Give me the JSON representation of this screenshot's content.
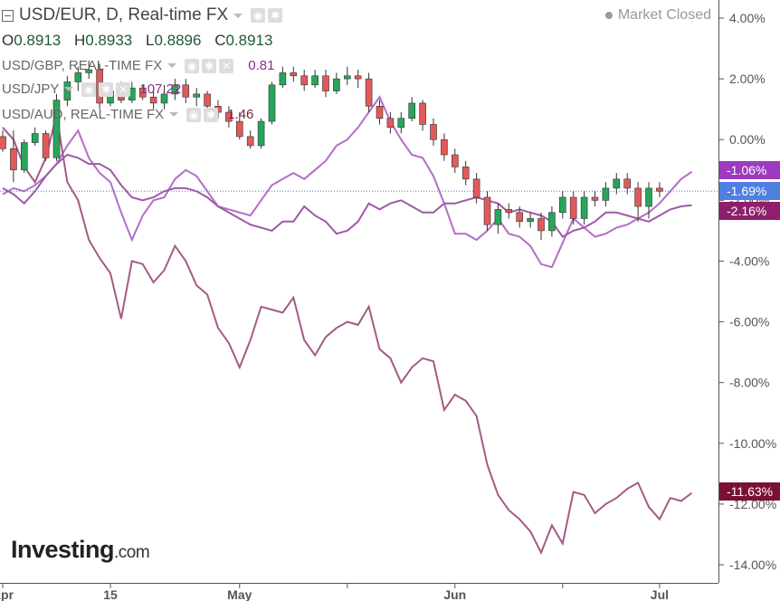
{
  "header": {
    "title": "USD/EUR, D, Real-time FX",
    "status": "Market Closed",
    "ohlc": [
      {
        "key": "O",
        "value": "0.8913"
      },
      {
        "key": "H",
        "value": "0.8933"
      },
      {
        "key": "L",
        "value": "0.8896"
      },
      {
        "key": "C",
        "value": "0.8913"
      }
    ]
  },
  "comparisons": [
    {
      "label": "USD/GBP, REAL-TIME FX",
      "value": "0.81",
      "color": "#8e2c8e"
    },
    {
      "label": "USD/JPY",
      "value": "107.22",
      "color": "#8e2c8e"
    },
    {
      "label": "USD/AUD, REAL-TIME FX",
      "value": "1.46",
      "color": "#7a1f3d"
    }
  ],
  "logo": {
    "main": "Investing",
    "suffix": ".com"
  },
  "colors": {
    "up": "#26a65b",
    "down": "#e05a5a",
    "gbp_line": "#b36ec6",
    "jpy_line": "#9c5ba6",
    "aud_line": "#a45a86",
    "price_line": "#4f7fe0"
  },
  "chart_data": {
    "type": "line",
    "y_axis_unit": "percent change",
    "ylim": [
      -14.8,
      4.6
    ],
    "y_ticks": [
      "4.00%",
      "2.00%",
      "0.00%",
      "-2.00%",
      "-4.00%",
      "-6.00%",
      "-8.00%",
      "-10.00%",
      "-12.00%",
      "-14.00%"
    ],
    "y_tick_values": [
      4,
      2,
      0,
      -2,
      -4,
      -6,
      -8,
      -10,
      -12,
      -14
    ],
    "x_ticks": [
      "Apr",
      "15",
      "May",
      "Jun",
      "Jul"
    ],
    "x_tick_index": [
      0,
      10,
      22,
      42,
      61
    ],
    "x_minor_index": [
      32,
      52
    ],
    "last_values": [
      {
        "label": "-1.06%",
        "value": -1.06,
        "color": "#9d3bbf"
      },
      {
        "label": "-1.69%",
        "value": -1.69,
        "color": "#4f7fe0"
      },
      {
        "label": "-2.16%",
        "value": -2.16,
        "color": "#8e1f6a"
      },
      {
        "label": "-11.63%",
        "value": -11.63,
        "color": "#7a1035"
      }
    ],
    "candles": [
      [
        0.1,
        -0.3,
        0.3,
        -0.4
      ],
      [
        -0.3,
        -1.0,
        0.3,
        -1.4
      ],
      [
        -1.0,
        -0.1,
        0.0,
        -1.1
      ],
      [
        -0.1,
        0.2,
        0.4,
        -0.2
      ],
      [
        0.2,
        -0.6,
        0.3,
        -0.7
      ],
      [
        -0.6,
        1.3,
        1.5,
        -0.7
      ],
      [
        1.3,
        1.9,
        2.1,
        1.1
      ],
      [
        1.9,
        2.2,
        2.4,
        1.6
      ],
      [
        2.2,
        2.3,
        2.6,
        2.0
      ],
      [
        2.3,
        1.2,
        2.5,
        1.0
      ],
      [
        1.2,
        1.6,
        1.8,
        1.1
      ],
      [
        1.6,
        1.3,
        1.9,
        1.2
      ],
      [
        1.3,
        1.7,
        1.9,
        1.2
      ],
      [
        1.7,
        1.4,
        1.8,
        1.3
      ],
      [
        1.4,
        1.2,
        1.6,
        1.0
      ],
      [
        1.2,
        1.5,
        1.8,
        1.0
      ],
      [
        1.5,
        1.8,
        2.0,
        1.3
      ],
      [
        1.8,
        1.4,
        2.0,
        1.2
      ],
      [
        1.4,
        1.5,
        1.7,
        1.1
      ],
      [
        1.5,
        1.1,
        1.6,
        0.9
      ],
      [
        1.1,
        0.9,
        1.3,
        0.7
      ],
      [
        0.9,
        0.6,
        1.1,
        0.4
      ],
      [
        0.6,
        0.1,
        0.9,
        -0.0
      ],
      [
        0.1,
        -0.2,
        0.3,
        -0.3
      ],
      [
        -0.2,
        0.6,
        0.7,
        -0.3
      ],
      [
        0.6,
        1.8,
        1.9,
        0.5
      ],
      [
        1.8,
        2.2,
        2.4,
        1.7
      ],
      [
        2.2,
        2.1,
        2.4,
        1.9
      ],
      [
        2.1,
        1.8,
        2.3,
        1.6
      ],
      [
        1.8,
        2.1,
        2.3,
        1.7
      ],
      [
        2.1,
        1.6,
        2.3,
        1.4
      ],
      [
        1.6,
        2.0,
        2.2,
        1.5
      ],
      [
        2.0,
        2.1,
        2.4,
        1.8
      ],
      [
        2.1,
        2.0,
        2.3,
        1.7
      ],
      [
        2.0,
        1.1,
        2.2,
        0.9
      ],
      [
        1.1,
        0.7,
        1.3,
        0.5
      ],
      [
        0.7,
        0.4,
        0.9,
        0.2
      ],
      [
        0.4,
        0.7,
        0.9,
        0.2
      ],
      [
        0.7,
        1.2,
        1.4,
        0.6
      ],
      [
        1.2,
        0.5,
        1.3,
        0.3
      ],
      [
        0.5,
        0.0,
        0.7,
        -0.2
      ],
      [
        0.0,
        -0.5,
        0.2,
        -0.7
      ],
      [
        -0.5,
        -0.9,
        -0.3,
        -1.1
      ],
      [
        -0.9,
        -1.3,
        -0.7,
        -1.5
      ],
      [
        -1.3,
        -1.9,
        -1.1,
        -2.1
      ],
      [
        -1.9,
        -2.8,
        -1.7,
        -3.0
      ],
      [
        -2.8,
        -2.3,
        -2.1,
        -3.1
      ],
      [
        -2.3,
        -2.4,
        -2.1,
        -2.6
      ],
      [
        -2.4,
        -2.7,
        -2.2,
        -2.9
      ],
      [
        -2.7,
        -2.6,
        -2.4,
        -2.9
      ],
      [
        -2.6,
        -3.0,
        -2.4,
        -3.3
      ],
      [
        -3.0,
        -2.4,
        -2.2,
        -3.2
      ],
      [
        -2.4,
        -1.9,
        -1.7,
        -2.6
      ],
      [
        -1.9,
        -2.6,
        -1.7,
        -2.8
      ],
      [
        -2.6,
        -1.9,
        -1.7,
        -2.8
      ],
      [
        -1.9,
        -2.0,
        -1.7,
        -2.2
      ],
      [
        -2.0,
        -1.6,
        -1.4,
        -2.2
      ],
      [
        -1.6,
        -1.3,
        -1.1,
        -1.8
      ],
      [
        -1.3,
        -1.6,
        -1.1,
        -1.8
      ],
      [
        -1.6,
        -2.2,
        -1.4,
        -2.7
      ],
      [
        -2.2,
        -1.6,
        -1.4,
        -2.6
      ],
      [
        -1.6,
        -1.7,
        -1.4,
        -1.9
      ]
    ],
    "series": [
      {
        "name": "USD/GBP, REAL-TIME FX",
        "color": "#b36ec6",
        "values": [
          -1.8,
          -1.6,
          -1.7,
          -1.5,
          -1.2,
          -0.8,
          -0.2,
          0.3,
          -0.6,
          -1.1,
          -1.4,
          -2.4,
          -3.3,
          -2.5,
          -2.0,
          -1.9,
          -1.3,
          -1.0,
          -1.2,
          -1.7,
          -2.2,
          -2.3,
          -2.4,
          -2.5,
          -2.0,
          -1.5,
          -1.3,
          -1.1,
          -1.3,
          -1.0,
          -0.7,
          -0.2,
          0.0,
          0.4,
          0.9,
          1.4,
          0.6,
          0.0,
          -0.5,
          -0.6,
          -1.2,
          -2.1,
          -3.1,
          -3.1,
          -3.3,
          -3.0,
          -2.6,
          -3.1,
          -3.2,
          -3.5,
          -4.1,
          -4.2,
          -3.4,
          -2.6,
          -2.9,
          -3.2,
          -3.1,
          -2.9,
          -2.8,
          -2.6,
          -2.4,
          -2.1,
          -1.7,
          -1.3,
          -1.06
        ]
      },
      {
        "name": "USD/JPY",
        "color": "#9c5ba6",
        "values": [
          -1.6,
          -1.8,
          -2.1,
          -1.7,
          -1.2,
          -0.8,
          -0.5,
          -0.6,
          -0.8,
          -0.8,
          -1.0,
          -1.5,
          -1.9,
          -2.0,
          -1.9,
          -1.7,
          -1.6,
          -1.6,
          -1.7,
          -1.9,
          -2.2,
          -2.4,
          -2.6,
          -2.8,
          -2.9,
          -3.0,
          -2.7,
          -2.7,
          -2.2,
          -2.5,
          -2.7,
          -3.1,
          -3.0,
          -2.7,
          -2.1,
          -2.3,
          -2.1,
          -2.0,
          -2.2,
          -2.4,
          -2.4,
          -2.1,
          -2.1,
          -2.0,
          -1.9,
          -2.0,
          -2.1,
          -2.4,
          -2.3,
          -2.4,
          -2.5,
          -2.7,
          -3.2,
          -3.0,
          -2.9,
          -2.7,
          -2.4,
          -2.4,
          -2.5,
          -2.6,
          -2.7,
          -2.5,
          -2.3,
          -2.2,
          -2.16
        ]
      },
      {
        "name": "USD/AUD, REAL-TIME FX",
        "color": "#a45a86",
        "values": [
          0.4,
          0.0,
          -0.9,
          -1.4,
          -0.6,
          0.8,
          -1.4,
          -2.0,
          -3.3,
          -3.9,
          -4.4,
          -5.9,
          -4.0,
          -4.1,
          -4.7,
          -4.3,
          -3.5,
          -4.0,
          -4.8,
          -5.1,
          -6.2,
          -6.7,
          -7.5,
          -6.6,
          -5.5,
          -5.6,
          -5.7,
          -5.2,
          -6.6,
          -7.1,
          -6.5,
          -6.2,
          -6.0,
          -6.1,
          -5.5,
          -6.9,
          -7.2,
          -8.0,
          -7.5,
          -7.2,
          -7.3,
          -8.9,
          -8.4,
          -8.6,
          -9.1,
          -10.7,
          -11.7,
          -12.2,
          -12.5,
          -12.9,
          -13.6,
          -12.7,
          -13.3,
          -11.6,
          -11.7,
          -12.3,
          -12.0,
          -11.8,
          -11.5,
          -11.3,
          -12.1,
          -12.5,
          -11.8,
          -11.9,
          -11.63
        ]
      }
    ]
  }
}
